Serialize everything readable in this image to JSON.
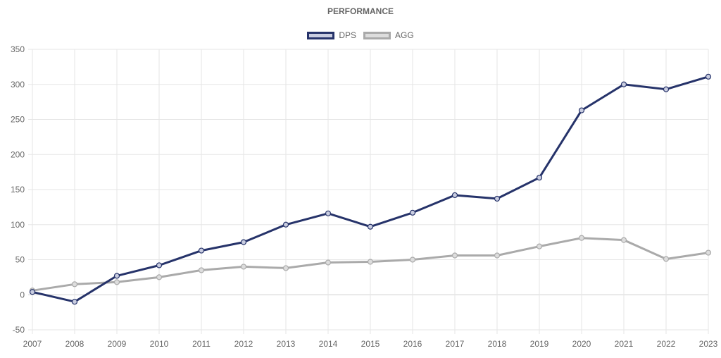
{
  "chart_data": {
    "type": "line",
    "title": "PERFORMANCE",
    "categories": [
      "2007",
      "2008",
      "2009",
      "2010",
      "2011",
      "2012",
      "2013",
      "2014",
      "2015",
      "2016",
      "2017",
      "2018",
      "2019",
      "2020",
      "2021",
      "2022",
      "2023"
    ],
    "series": [
      {
        "name": "DPS",
        "color": "#26336a",
        "point_fill": "#c9cde0",
        "values": [
          4,
          -10,
          27,
          42,
          63,
          75,
          100,
          116,
          97,
          117,
          142,
          137,
          167,
          263,
          300,
          293,
          311
        ]
      },
      {
        "name": "AGG",
        "color": "#aaaaaa",
        "point_fill": "#dddddd",
        "values": [
          6,
          15,
          18,
          25,
          35,
          40,
          38,
          46,
          47,
          50,
          56,
          56,
          69,
          81,
          78,
          51,
          60
        ]
      }
    ],
    "yticks": [
      "350",
      "300",
      "250",
      "200",
      "150",
      "100",
      "50",
      "0",
      "-50"
    ],
    "ylim": [
      -50,
      350
    ],
    "grid": true,
    "legend_position": "top-center",
    "xlabel": "",
    "ylabel": ""
  }
}
